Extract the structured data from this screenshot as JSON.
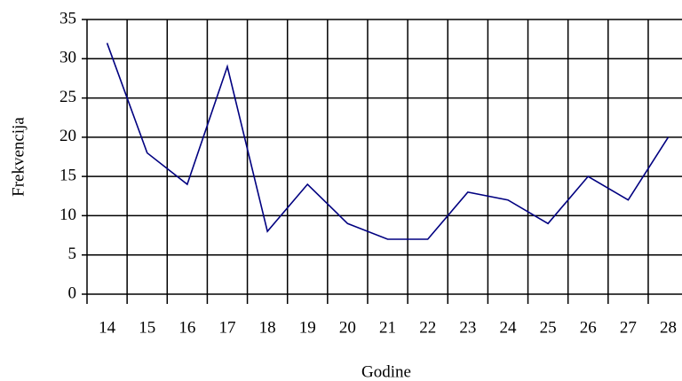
{
  "chart_data": {
    "type": "line",
    "x_label": "Godine",
    "y_label": "Frekvencija",
    "categories": [
      "14",
      "15",
      "16",
      "17",
      "18",
      "19",
      "20",
      "21",
      "22",
      "23",
      "24",
      "25",
      "26",
      "27",
      "28"
    ],
    "values": [
      32,
      18,
      14,
      29,
      8,
      14,
      9,
      7,
      7,
      13,
      12,
      9,
      15,
      12,
      20
    ],
    "color": "#000080",
    "ylim": [
      0,
      35
    ],
    "yticks": [
      0,
      5,
      10,
      15,
      20,
      25,
      30,
      35
    ],
    "grid": true
  }
}
